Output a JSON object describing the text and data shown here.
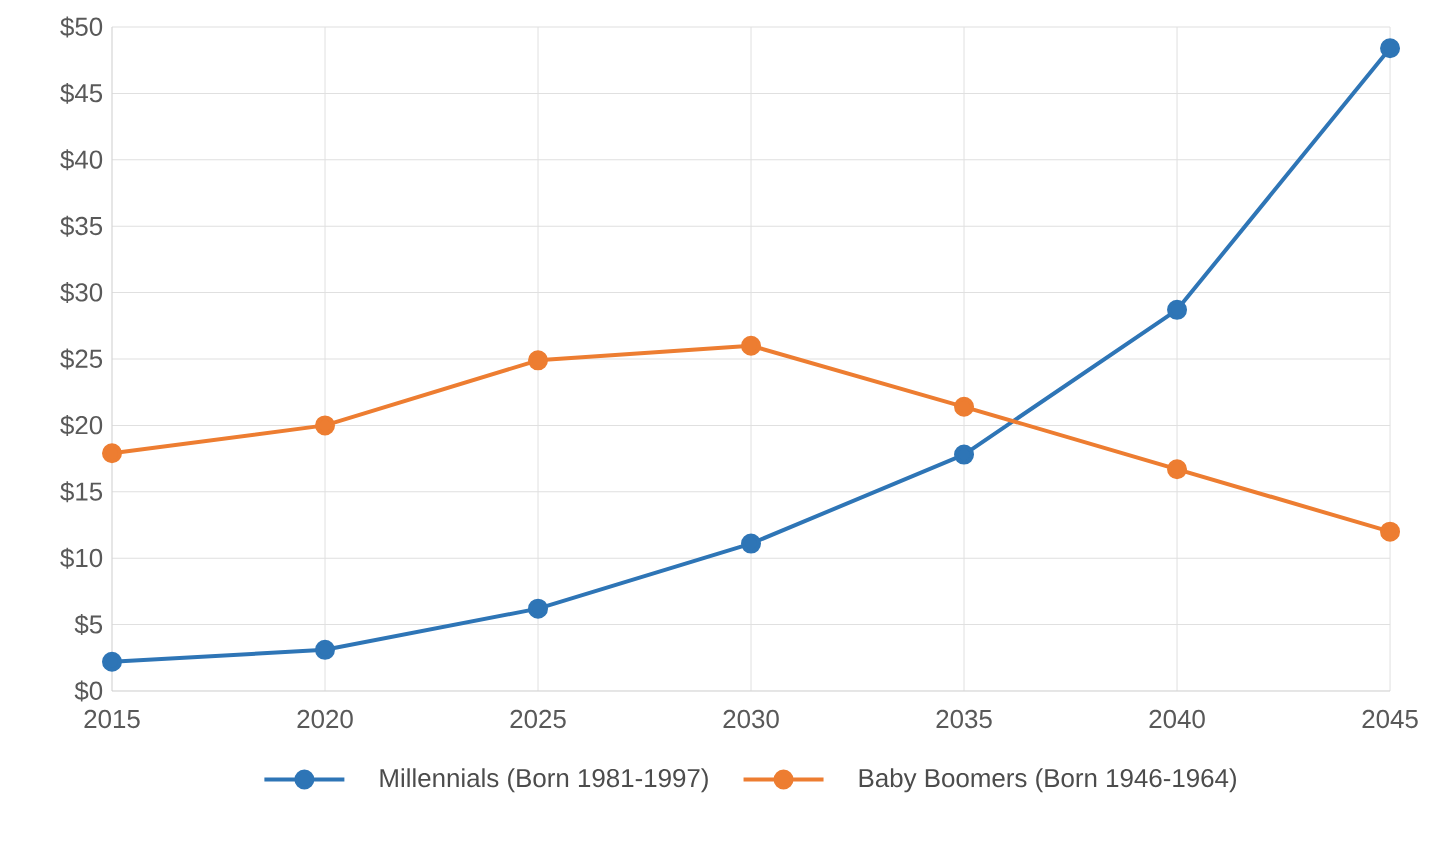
{
  "chart_data": {
    "type": "line",
    "x": [
      2015,
      2020,
      2025,
      2030,
      2035,
      2040,
      2045
    ],
    "series": [
      {
        "name": "Millennials (Born 1981-1997)",
        "color": "#2e75b6",
        "values": [
          2.2,
          3.1,
          6.2,
          11.1,
          17.8,
          28.7,
          48.4
        ]
      },
      {
        "name": "Baby Boomers (Born 1946-1964)",
        "color": "#ed7d31",
        "values": [
          17.9,
          20.0,
          24.9,
          26.0,
          21.4,
          16.7,
          12.0
        ]
      }
    ],
    "xlim": [
      2015,
      2045
    ],
    "xticks": [
      2015,
      2020,
      2025,
      2030,
      2035,
      2040,
      2045
    ],
    "ylim": [
      0,
      50
    ],
    "yticks": [
      {
        "value": 0,
        "label": "$0"
      },
      {
        "value": 5,
        "label": "$5"
      },
      {
        "value": 10,
        "label": "$10"
      },
      {
        "value": 15,
        "label": "$15"
      },
      {
        "value": 20,
        "label": "$20"
      },
      {
        "value": 25,
        "label": "$25"
      },
      {
        "value": 30,
        "label": "$30"
      },
      {
        "value": 35,
        "label": "$35"
      },
      {
        "value": 40,
        "label": "$40"
      },
      {
        "value": 45,
        "label": "$45"
      },
      {
        "value": 50,
        "label": "$50"
      }
    ],
    "grid": true,
    "legend": "bottom",
    "marker": "circle",
    "line_style": "solid"
  }
}
